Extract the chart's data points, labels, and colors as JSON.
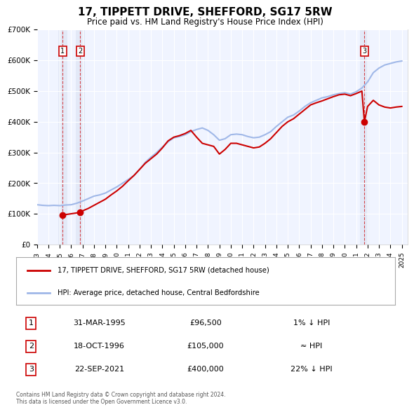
{
  "title": "17, TIPPETT DRIVE, SHEFFORD, SG17 5RW",
  "subtitle": "Price paid vs. HM Land Registry's House Price Index (HPI)",
  "ylabel": "",
  "ylim": [
    0,
    700000
  ],
  "yticks": [
    0,
    100000,
    200000,
    300000,
    400000,
    500000,
    600000,
    700000
  ],
  "ytick_labels": [
    "£0",
    "£100K",
    "£200K",
    "£300K",
    "£400K",
    "£500K",
    "£600K",
    "£700K"
  ],
  "xlim_start": 1993.0,
  "xlim_end": 2025.5,
  "background_color": "#ffffff",
  "plot_bg_color": "#f0f4ff",
  "grid_color": "#ffffff",
  "hpi_line_color": "#a0b8e8",
  "price_line_color": "#cc0000",
  "sale_marker_color": "#cc0000",
  "transaction_dashed_color": "#cc0000",
  "shade_color": "#d8e0f0",
  "transactions": [
    {
      "id": 1,
      "date": "31-MAR-1995",
      "year": 1995.25,
      "price": 96500,
      "label": "1",
      "note": "1% ↓ HPI"
    },
    {
      "id": 2,
      "date": "18-OCT-1996",
      "year": 1996.8,
      "price": 105000,
      "label": "2",
      "note": "≈ HPI"
    },
    {
      "id": 3,
      "date": "22-SEP-2021",
      "year": 2021.72,
      "price": 400000,
      "label": "3",
      "note": "22% ↓ HPI"
    }
  ],
  "legend_entries": [
    {
      "label": "17, TIPPETT DRIVE, SHEFFORD, SG17 5RW (detached house)",
      "color": "#cc0000",
      "style": "solid"
    },
    {
      "label": "HPI: Average price, detached house, Central Bedfordshire",
      "color": "#a0b8e8",
      "style": "solid"
    }
  ],
  "footer_text": "Contains HM Land Registry data © Crown copyright and database right 2024.\nThis data is licensed under the Open Government Licence v3.0.",
  "hpi_data": {
    "years": [
      1993.0,
      1993.5,
      1994.0,
      1994.5,
      1995.0,
      1995.5,
      1996.0,
      1996.5,
      1997.0,
      1997.5,
      1998.0,
      1998.5,
      1999.0,
      1999.5,
      2000.0,
      2000.5,
      2001.0,
      2001.5,
      2002.0,
      2002.5,
      2003.0,
      2003.5,
      2004.0,
      2004.5,
      2005.0,
      2005.5,
      2006.0,
      2006.5,
      2007.0,
      2007.5,
      2008.0,
      2008.5,
      2009.0,
      2009.5,
      2010.0,
      2010.5,
      2011.0,
      2011.5,
      2012.0,
      2012.5,
      2013.0,
      2013.5,
      2014.0,
      2014.5,
      2015.0,
      2015.5,
      2016.0,
      2016.5,
      2017.0,
      2017.5,
      2018.0,
      2018.5,
      2019.0,
      2019.5,
      2020.0,
      2020.5,
      2021.0,
      2021.5,
      2022.0,
      2022.5,
      2023.0,
      2023.5,
      2024.0,
      2024.5,
      2025.0
    ],
    "values": [
      130000,
      128000,
      127000,
      128000,
      127000,
      129000,
      130000,
      135000,
      142000,
      150000,
      158000,
      162000,
      168000,
      178000,
      188000,
      200000,
      212000,
      225000,
      245000,
      268000,
      285000,
      300000,
      318000,
      335000,
      348000,
      352000,
      358000,
      368000,
      375000,
      380000,
      372000,
      358000,
      340000,
      345000,
      358000,
      360000,
      358000,
      352000,
      348000,
      350000,
      358000,
      368000,
      385000,
      400000,
      415000,
      422000,
      435000,
      450000,
      462000,
      470000,
      478000,
      482000,
      488000,
      492000,
      495000,
      490000,
      498000,
      510000,
      530000,
      560000,
      575000,
      585000,
      590000,
      595000,
      598000
    ]
  },
  "price_data": {
    "years": [
      1993.0,
      1993.5,
      1994.0,
      1994.5,
      1995.0,
      1995.25,
      1995.5,
      1996.0,
      1996.5,
      1996.8,
      1997.0,
      1997.5,
      1998.0,
      1998.5,
      1999.0,
      1999.5,
      2000.0,
      2000.5,
      2001.0,
      2001.5,
      2002.0,
      2002.5,
      2003.0,
      2003.5,
      2004.0,
      2004.5,
      2005.0,
      2005.5,
      2006.0,
      2006.5,
      2007.0,
      2007.5,
      2008.0,
      2008.5,
      2009.0,
      2009.5,
      2010.0,
      2010.5,
      2011.0,
      2011.5,
      2012.0,
      2012.5,
      2013.0,
      2013.5,
      2014.0,
      2014.5,
      2015.0,
      2015.5,
      2016.0,
      2016.5,
      2017.0,
      2017.5,
      2018.0,
      2018.5,
      2019.0,
      2019.5,
      2020.0,
      2020.5,
      2021.0,
      2021.5,
      2021.72,
      2022.0,
      2022.5,
      2023.0,
      2023.5,
      2024.0,
      2024.5,
      2025.0
    ],
    "values": [
      null,
      null,
      null,
      null,
      null,
      96500,
      null,
      null,
      null,
      105000,
      110000,
      118000,
      128000,
      138000,
      148000,
      162000,
      175000,
      190000,
      208000,
      225000,
      245000,
      265000,
      280000,
      295000,
      315000,
      338000,
      350000,
      355000,
      362000,
      372000,
      350000,
      330000,
      325000,
      320000,
      295000,
      310000,
      330000,
      330000,
      325000,
      320000,
      315000,
      318000,
      330000,
      345000,
      365000,
      385000,
      400000,
      410000,
      425000,
      440000,
      455000,
      462000,
      468000,
      475000,
      482000,
      488000,
      490000,
      485000,
      492000,
      500000,
      400000,
      450000,
      470000,
      455000,
      448000,
      445000,
      448000,
      450000
    ]
  }
}
